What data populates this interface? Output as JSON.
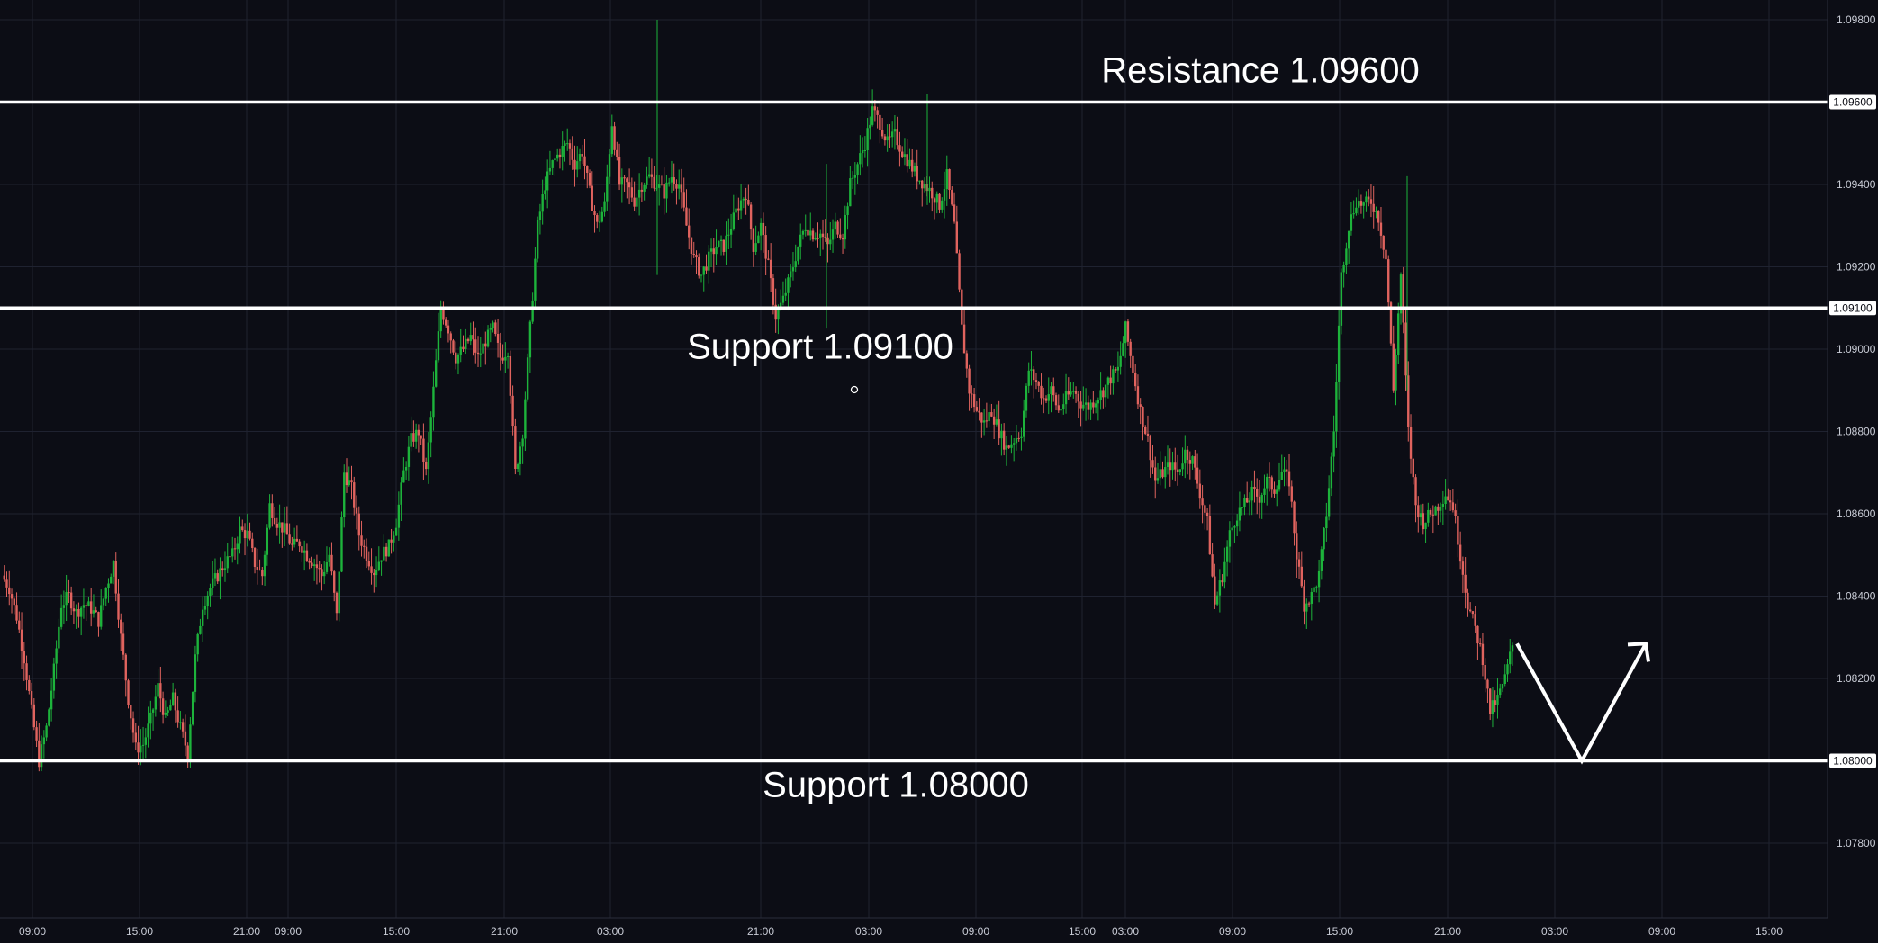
{
  "colors": {
    "background": "#0c0d15",
    "grid": "#1f2230",
    "axis_text": "#c9ccd6",
    "up": "#1db33b",
    "down": "#e0635e",
    "level": "#ffffff"
  },
  "chart_data": {
    "type": "candlestick",
    "symbol": "",
    "title": "",
    "ylim": [
      1.077,
      1.0985
    ],
    "y_ticks": [
      "1.09800",
      "1.09400",
      "1.09200",
      "1.09000",
      "1.08800",
      "1.08600",
      "1.08400",
      "1.08200",
      "1.07800"
    ],
    "x_ticks": [
      "09:00",
      "15:00",
      "21:00",
      "09:00",
      "15:00",
      "21:00",
      "03:00",
      "21:00",
      "03:00",
      "09:00",
      "15:00",
      "03:00",
      "09:00",
      "15:00",
      "21:00",
      "03:00",
      "09:00",
      "15:00"
    ],
    "grid": true,
    "levels": [
      {
        "name": "Resistance",
        "label": "Resistance 1.09600",
        "value": 1.096,
        "badge": "1.09600"
      },
      {
        "name": "Support",
        "label": "Support 1.09100",
        "value": 1.091,
        "badge": "1.09100"
      },
      {
        "name": "Support",
        "label": "Support 1.08000",
        "value": 1.08,
        "badge": "1.08000"
      }
    ],
    "price_path": [
      1.0845,
      1.0842,
      1.0835,
      1.0825,
      1.0812,
      1.08,
      1.0808,
      1.0822,
      1.0838,
      1.084,
      1.0836,
      1.0838,
      1.0837,
      1.0834,
      1.0842,
      1.0848,
      1.083,
      1.0815,
      1.0803,
      1.0804,
      1.081,
      1.0818,
      1.081,
      1.0815,
      1.0808,
      1.0802,
      1.0825,
      1.0838,
      1.0842,
      1.0845,
      1.0848,
      1.085,
      1.0856,
      1.0855,
      1.0848,
      1.0845,
      1.0862,
      1.0858,
      1.0856,
      1.0852,
      1.0853,
      1.085,
      1.0848,
      1.0845,
      1.085,
      1.0835,
      1.087,
      1.0866,
      1.0855,
      1.085,
      1.0846,
      1.085,
      1.0852,
      1.0858,
      1.087,
      1.0878,
      1.088,
      1.087,
      1.089,
      1.091,
      1.0905,
      1.0898,
      1.09,
      1.0903,
      1.0898,
      1.0902,
      1.0905,
      1.0898,
      1.09,
      1.087,
      1.088,
      1.0905,
      1.093,
      1.094,
      1.0945,
      1.0948,
      1.095,
      1.0945,
      1.0948,
      1.0938,
      1.093,
      1.0935,
      1.0955,
      1.094,
      1.094,
      1.0936,
      1.094,
      1.0942,
      1.094,
      1.0938,
      1.0942,
      1.094,
      1.093,
      1.0922,
      1.0918,
      1.0922,
      1.0925,
      1.0925,
      1.093,
      1.0935,
      1.0938,
      1.0925,
      1.093,
      1.092,
      1.0908,
      1.0912,
      1.0918,
      1.0925,
      1.093,
      1.0928,
      1.0928,
      1.0925,
      1.093,
      1.0928,
      1.094,
      1.0945,
      1.095,
      1.0958,
      1.0955,
      1.095,
      1.0952,
      1.0948,
      1.0945,
      1.0942,
      1.094,
      1.0938,
      1.0935,
      1.0942,
      1.093,
      1.0905,
      1.089,
      1.0885,
      1.0882,
      1.0885,
      1.088,
      1.0876,
      1.0878,
      1.088,
      1.0895,
      1.0892,
      1.0888,
      1.089,
      1.0885,
      1.0888,
      1.089,
      1.0887,
      1.0886,
      1.0888,
      1.089,
      1.0893,
      1.0895,
      1.0905,
      1.0895,
      1.0885,
      1.0878,
      1.0868,
      1.087,
      1.0872,
      1.087,
      1.0875,
      1.0873,
      1.0865,
      1.0858,
      1.0838,
      1.0845,
      1.0855,
      1.086,
      1.0862,
      1.0865,
      1.0864,
      1.0868,
      1.0866,
      1.087,
      1.0868,
      1.085,
      1.0838,
      1.084,
      1.0845,
      1.086,
      1.088,
      1.0918,
      1.093,
      1.0936,
      1.0935,
      1.0936,
      1.0932,
      1.0922,
      1.089,
      1.0918,
      1.088,
      1.0862,
      1.0858,
      1.086,
      1.0862,
      1.0865,
      1.0862,
      1.085,
      1.0838,
      1.0832,
      1.0825,
      1.0812,
      1.0815,
      1.082,
      1.0828
    ],
    "projection": [
      {
        "t": "now",
        "value": 1.0828
      },
      {
        "t": "next-low",
        "value": 1.08
      },
      {
        "t": "target",
        "value": 1.0828
      }
    ]
  }
}
